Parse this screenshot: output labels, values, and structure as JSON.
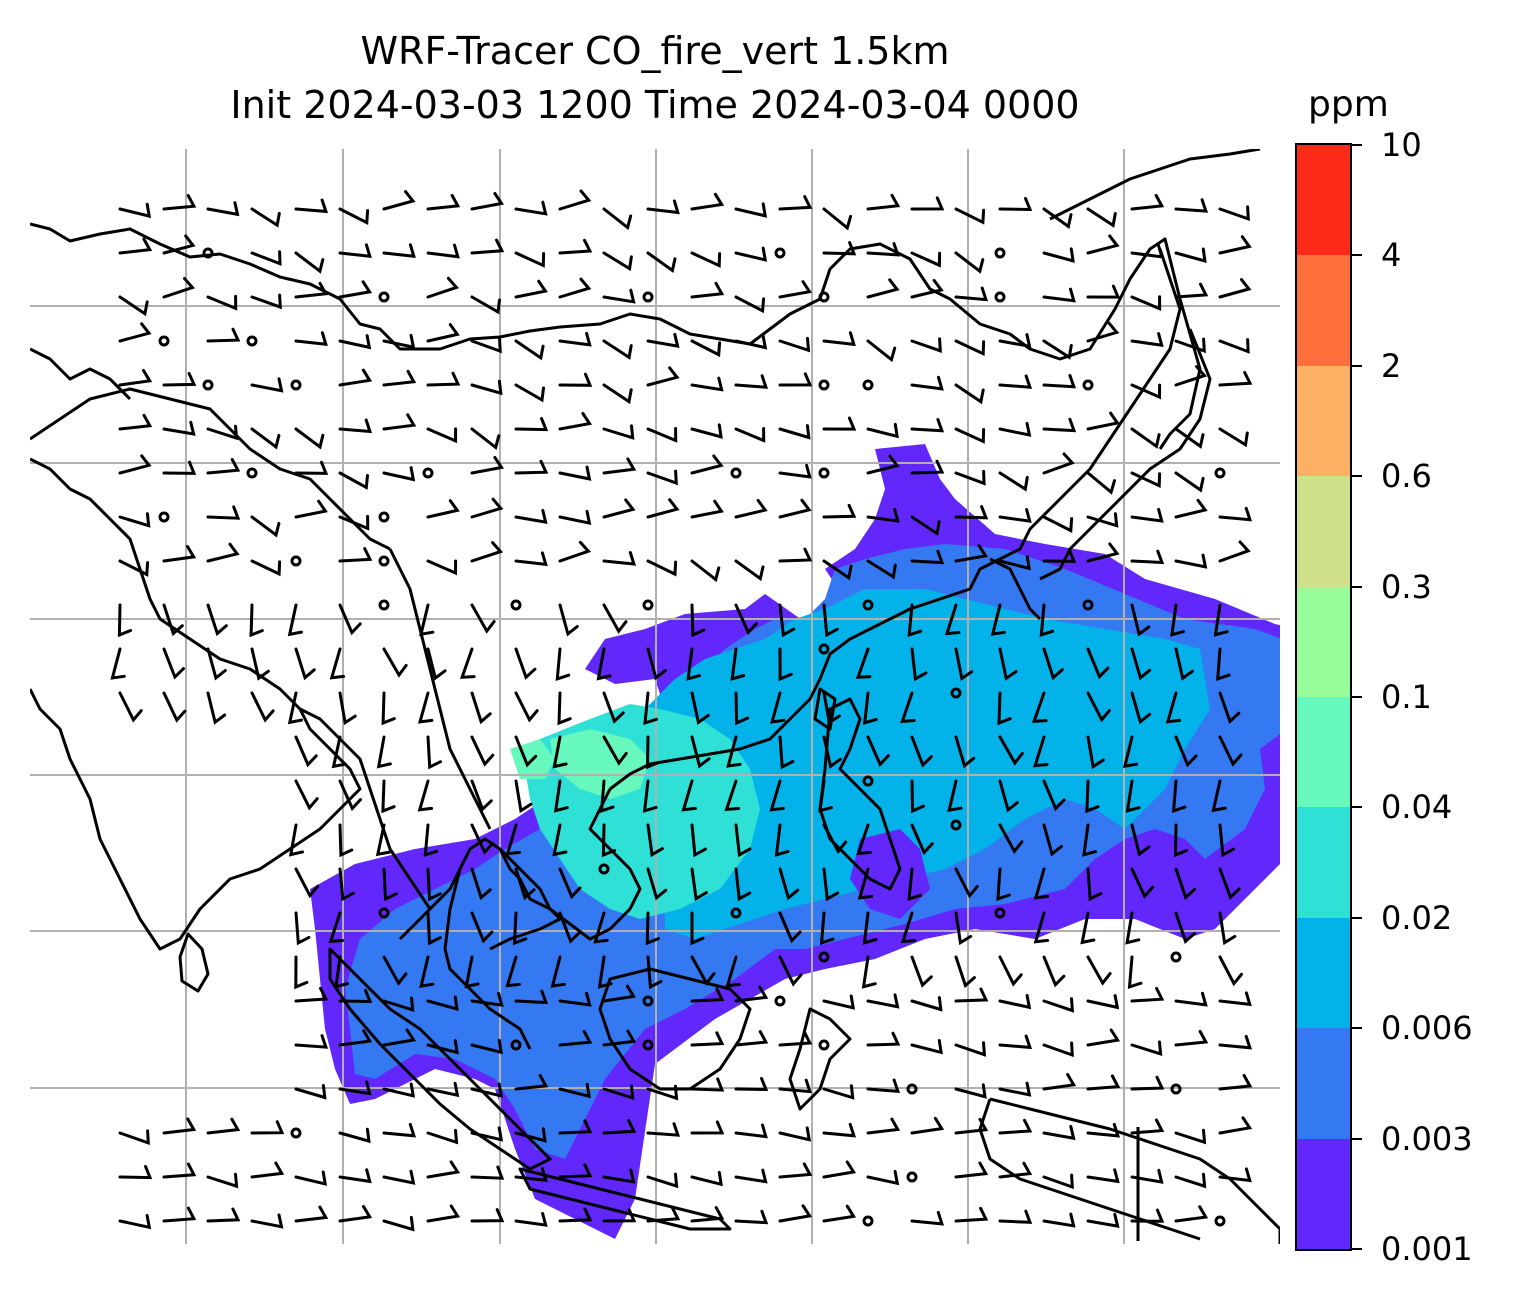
{
  "title": {
    "line1": "WRF-Tracer CO_fire_vert 1.5km",
    "line2": "Init 2024-03-03 1200 Time 2024-03-04 0000"
  },
  "colorbar": {
    "unit": "ppm",
    "levels": [
      "0.001",
      "0.003",
      "0.006",
      "0.02",
      "0.04",
      "0.1",
      "0.3",
      "0.6",
      "2",
      "4",
      "10"
    ],
    "colors": [
      "#6228fb",
      "#3478f2",
      "#03b2e9",
      "#2ee0d6",
      "#67f8be",
      "#98fc98",
      "#cfe188",
      "#fcb064",
      "#fe6f3e",
      "#fc2a18"
    ]
  },
  "map": {
    "gridlines": true,
    "content": "CO fire tracer concentration with wind barbs, coastlines and borders"
  }
}
